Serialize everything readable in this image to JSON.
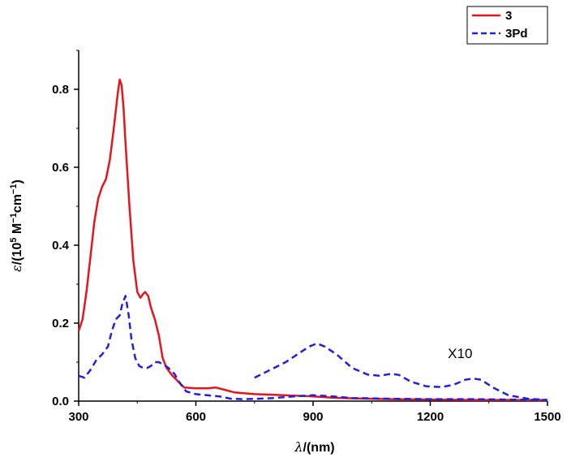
{
  "chart_data": {
    "type": "line",
    "title": "",
    "xlabel": {
      "prefix": "λ",
      "text": "/(nm)"
    },
    "ylabel": {
      "prefix": "ε",
      "text": "/(10",
      "sup1": "5",
      "mid": " M",
      "sup2": "−1",
      "mid2": "cm",
      "sup3": "−1",
      "end": ")"
    },
    "xlim": [
      300,
      1500
    ],
    "ylim": [
      0,
      0.9
    ],
    "x_ticks": [
      300,
      600,
      900,
      1200,
      1500
    ],
    "x_tick_labels": [
      "300",
      "600",
      "900",
      "1200",
      "1500"
    ],
    "y_ticks": [
      0.0,
      0.2,
      0.4,
      0.6,
      0.8
    ],
    "y_tick_labels": [
      "0.0",
      "0.2",
      "0.4",
      "0.6",
      "0.8"
    ],
    "legend": {
      "placement": "top-right"
    },
    "annotation": {
      "text": "X10",
      "x": 1245,
      "y": 0.11
    },
    "series": [
      {
        "name": "3",
        "color": "#e8141c",
        "style": "solid",
        "points": [
          [
            300,
            0.18
          ],
          [
            310,
            0.21
          ],
          [
            320,
            0.28
          ],
          [
            330,
            0.37
          ],
          [
            340,
            0.46
          ],
          [
            350,
            0.52
          ],
          [
            360,
            0.55
          ],
          [
            370,
            0.57
          ],
          [
            380,
            0.62
          ],
          [
            390,
            0.7
          ],
          [
            400,
            0.79
          ],
          [
            405,
            0.825
          ],
          [
            410,
            0.81
          ],
          [
            415,
            0.75
          ],
          [
            420,
            0.66
          ],
          [
            430,
            0.5
          ],
          [
            440,
            0.36
          ],
          [
            450,
            0.28
          ],
          [
            458,
            0.265
          ],
          [
            465,
            0.275
          ],
          [
            470,
            0.28
          ],
          [
            478,
            0.27
          ],
          [
            485,
            0.24
          ],
          [
            495,
            0.21
          ],
          [
            505,
            0.17
          ],
          [
            515,
            0.11
          ],
          [
            525,
            0.085
          ],
          [
            540,
            0.065
          ],
          [
            555,
            0.05
          ],
          [
            570,
            0.035
          ],
          [
            600,
            0.033
          ],
          [
            630,
            0.033
          ],
          [
            650,
            0.035
          ],
          [
            670,
            0.03
          ],
          [
            700,
            0.022
          ],
          [
            750,
            0.018
          ],
          [
            800,
            0.016
          ],
          [
            850,
            0.014
          ],
          [
            900,
            0.012
          ],
          [
            950,
            0.009
          ],
          [
            1000,
            0.007
          ],
          [
            1100,
            0.005
          ],
          [
            1200,
            0.004
          ],
          [
            1300,
            0.003
          ],
          [
            1400,
            0.003
          ],
          [
            1500,
            0.002
          ]
        ]
      },
      {
        "name": "3Pd",
        "color": "#2020e0",
        "style": "dashed",
        "points": [
          [
            300,
            0.065
          ],
          [
            315,
            0.06
          ],
          [
            330,
            0.08
          ],
          [
            345,
            0.105
          ],
          [
            360,
            0.12
          ],
          [
            375,
            0.14
          ],
          [
            385,
            0.18
          ],
          [
            395,
            0.21
          ],
          [
            405,
            0.22
          ],
          [
            412,
            0.25
          ],
          [
            420,
            0.27
          ],
          [
            428,
            0.22
          ],
          [
            435,
            0.16
          ],
          [
            445,
            0.11
          ],
          [
            455,
            0.09
          ],
          [
            465,
            0.085
          ],
          [
            475,
            0.085
          ],
          [
            485,
            0.09
          ],
          [
            495,
            0.1
          ],
          [
            505,
            0.1
          ],
          [
            515,
            0.095
          ],
          [
            530,
            0.085
          ],
          [
            545,
            0.07
          ],
          [
            560,
            0.045
          ],
          [
            575,
            0.025
          ],
          [
            600,
            0.018
          ],
          [
            630,
            0.015
          ],
          [
            660,
            0.012
          ],
          [
            690,
            0.006
          ],
          [
            720,
            0.005
          ],
          [
            760,
            0.006
          ],
          [
            800,
            0.008
          ],
          [
            850,
            0.012
          ],
          [
            900,
            0.015
          ],
          [
            950,
            0.012
          ],
          [
            1000,
            0.008
          ],
          [
            1100,
            0.006
          ],
          [
            1200,
            0.005
          ],
          [
            1300,
            0.005
          ],
          [
            1400,
            0.004
          ],
          [
            1500,
            0.003
          ]
        ]
      },
      {
        "name": "3Pd (X10)",
        "color": "#2020e0",
        "style": "dashed",
        "points": [
          [
            750,
            0.06
          ],
          [
            790,
            0.08
          ],
          [
            830,
            0.1
          ],
          [
            860,
            0.12
          ],
          [
            890,
            0.14
          ],
          [
            910,
            0.148
          ],
          [
            930,
            0.14
          ],
          [
            960,
            0.12
          ],
          [
            1000,
            0.085
          ],
          [
            1040,
            0.068
          ],
          [
            1070,
            0.065
          ],
          [
            1100,
            0.07
          ],
          [
            1120,
            0.067
          ],
          [
            1150,
            0.05
          ],
          [
            1190,
            0.038
          ],
          [
            1230,
            0.036
          ],
          [
            1260,
            0.042
          ],
          [
            1290,
            0.055
          ],
          [
            1310,
            0.058
          ],
          [
            1330,
            0.055
          ],
          [
            1360,
            0.035
          ],
          [
            1400,
            0.015
          ],
          [
            1450,
            0.006
          ],
          [
            1500,
            0.003
          ]
        ]
      }
    ]
  }
}
